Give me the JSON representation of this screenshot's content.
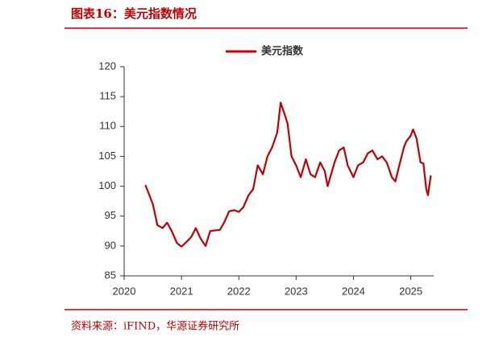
{
  "chart_data": {
    "type": "line",
    "title": "图表16：美元指数情况",
    "source": "资料来源：iFIND，华源证券研究所",
    "xlim": [
      2020,
      2025.4
    ],
    "xticks": [
      2020,
      2021,
      2022,
      2023,
      2024,
      2025
    ],
    "ylim": [
      85,
      120
    ],
    "yticks": [
      85,
      90,
      95,
      100,
      105,
      110,
      115,
      120
    ],
    "legend": "top",
    "x": [
      2020.37,
      2020.42,
      2020.5,
      2020.58,
      2020.67,
      2020.75,
      2020.83,
      2020.92,
      2021.0,
      2021.08,
      2021.17,
      2021.25,
      2021.33,
      2021.42,
      2021.5,
      2021.58,
      2021.67,
      2021.75,
      2021.83,
      2021.92,
      2022.0,
      2022.08,
      2022.17,
      2022.25,
      2022.33,
      2022.42,
      2022.5,
      2022.58,
      2022.67,
      2022.73,
      2022.8,
      2022.85,
      2022.92,
      2023.0,
      2023.08,
      2023.17,
      2023.25,
      2023.33,
      2023.42,
      2023.5,
      2023.55,
      2023.67,
      2023.75,
      2023.83,
      2023.9,
      2024.0,
      2024.08,
      2024.17,
      2024.25,
      2024.33,
      2024.42,
      2024.5,
      2024.58,
      2024.67,
      2024.73,
      2024.8,
      2024.88,
      2024.92,
      2025.0,
      2025.04,
      2025.1,
      2025.17,
      2025.22,
      2025.27,
      2025.3,
      2025.35
    ],
    "series": [
      {
        "name": "美元指数",
        "color": "#c00000",
        "values": [
          100.2,
          99.0,
          97.0,
          93.5,
          93.0,
          93.9,
          92.5,
          90.5,
          89.9,
          90.6,
          91.5,
          93.0,
          91.3,
          90.0,
          92.5,
          92.6,
          92.7,
          94.0,
          95.8,
          96.0,
          95.7,
          96.5,
          98.5,
          99.5,
          103.5,
          102.0,
          105.0,
          106.5,
          109.0,
          114.0,
          112.0,
          110.5,
          105.0,
          103.5,
          101.5,
          104.5,
          102.0,
          101.5,
          104.0,
          102.5,
          100.0,
          104.0,
          106.0,
          106.5,
          103.5,
          101.5,
          103.5,
          104.0,
          105.5,
          106.0,
          104.5,
          105.0,
          104.0,
          101.5,
          100.8,
          103.5,
          106.5,
          107.5,
          108.5,
          109.5,
          108.0,
          104.0,
          103.8,
          99.5,
          98.5,
          101.8
        ]
      }
    ]
  }
}
